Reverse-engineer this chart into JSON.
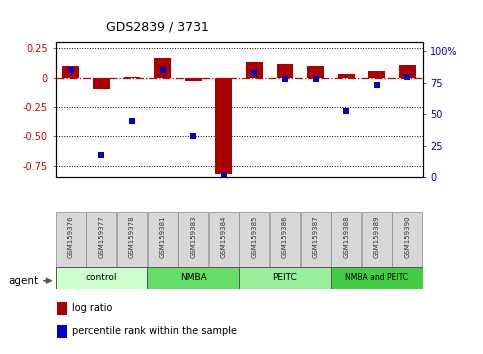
{
  "title": "GDS2839 / 3731",
  "samples": [
    "GSM159376",
    "GSM159377",
    "GSM159378",
    "GSM159381",
    "GSM159383",
    "GSM159384",
    "GSM159385",
    "GSM159386",
    "GSM159387",
    "GSM159388",
    "GSM159389",
    "GSM159390"
  ],
  "log_ratio": [
    0.1,
    -0.1,
    0.005,
    0.17,
    -0.03,
    -0.82,
    0.13,
    0.12,
    0.1,
    0.03,
    0.06,
    0.11
  ],
  "percentile_rank": [
    85,
    18,
    45,
    85,
    33,
    2,
    83,
    78,
    78,
    53,
    73,
    80
  ],
  "groups": [
    {
      "label": "control",
      "start": 0,
      "end": 3,
      "color": "#ccffcc"
    },
    {
      "label": "NMBA",
      "start": 3,
      "end": 6,
      "color": "#66dd66"
    },
    {
      "label": "PEITC",
      "start": 6,
      "end": 9,
      "color": "#99ee99"
    },
    {
      "label": "NMBA and PEITC",
      "start": 9,
      "end": 12,
      "color": "#44cc44"
    }
  ],
  "ylim_left": [
    -0.85,
    0.3
  ],
  "ylim_right": [
    0,
    107
  ],
  "yticks_left": [
    0.25,
    0.0,
    -0.25,
    -0.5,
    -0.75
  ],
  "yticks_right": [
    0,
    25,
    50,
    75,
    100
  ],
  "bar_width": 0.55,
  "log_ratio_color": "#aa0000",
  "percentile_color": "#0000cc",
  "background_color": "#ffffff",
  "zero_line_color": "#cc0000",
  "agent_label": "agent",
  "legend_log_ratio": "log ratio",
  "legend_percentile": "percentile rank within the sample",
  "group_colors_light": [
    "#ccffcc",
    "#66dd66",
    "#99ee99",
    "#44cc44"
  ]
}
